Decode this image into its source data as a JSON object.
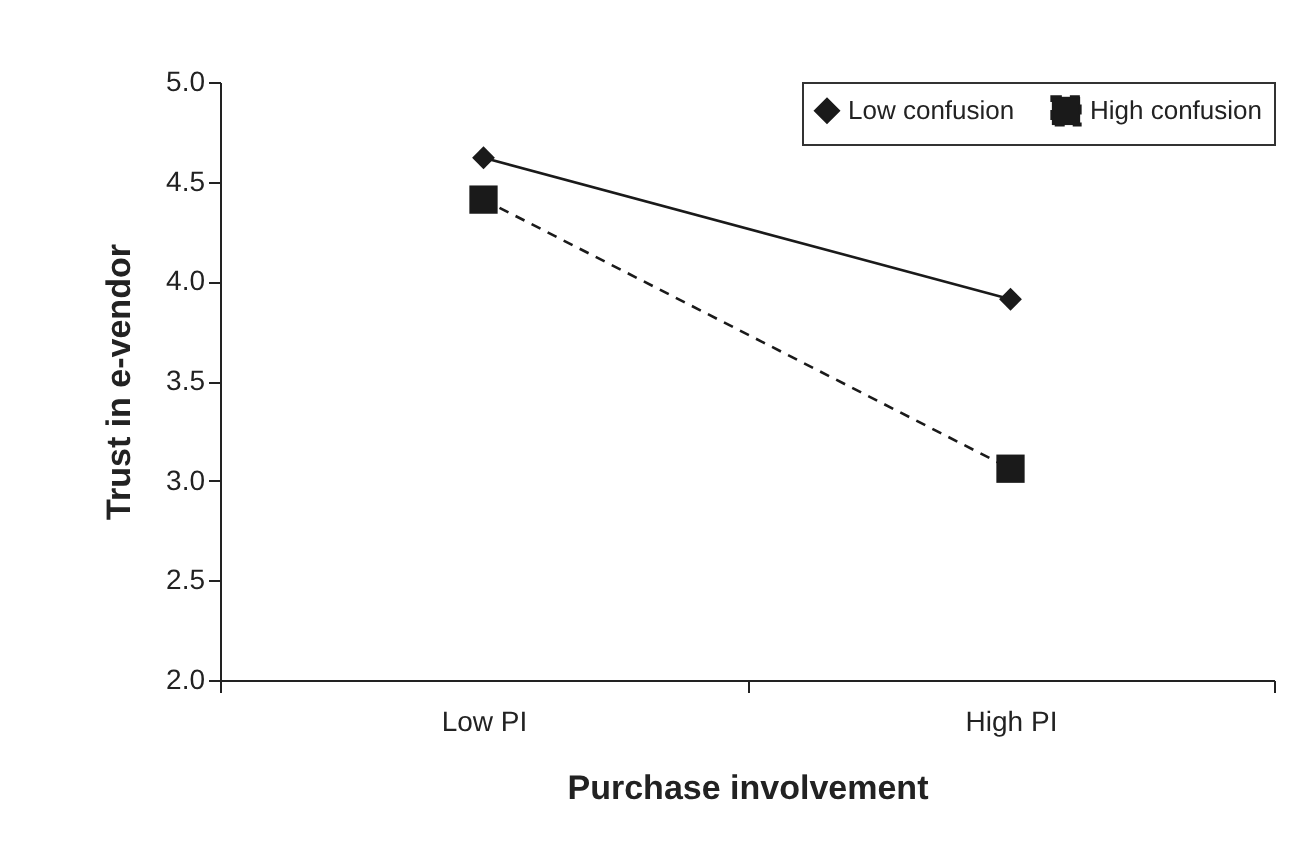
{
  "chart_data": {
    "type": "line",
    "xlabel": "Purchase involvement",
    "ylabel": "Trust in e-vendor",
    "categories": [
      "Low PI",
      "High PI"
    ],
    "series": [
      {
        "name": "Low confusion",
        "color": "#1a1a1a",
        "values": [
          4.62,
          3.91
        ],
        "marker": "diamond",
        "line_style": "solid"
      },
      {
        "name": "High confusion",
        "color": "#1a1a1a",
        "values": [
          4.41,
          3.06
        ],
        "marker": "square",
        "line_style": "dashed"
      }
    ],
    "ylim": [
      2,
      5
    ],
    "yticks": [
      {
        "value": 2,
        "label": "2.0"
      },
      {
        "value": 2.5,
        "label": "2.5"
      },
      {
        "value": 3,
        "label": "3.0"
      },
      {
        "value": 3.5,
        "label": "3.5"
      },
      {
        "value": 4,
        "label": "4.0"
      },
      {
        "value": 4.5,
        "label": "4.5"
      },
      {
        "value": 5,
        "label": "5.0"
      }
    ],
    "grid": false,
    "legend": "top right"
  }
}
